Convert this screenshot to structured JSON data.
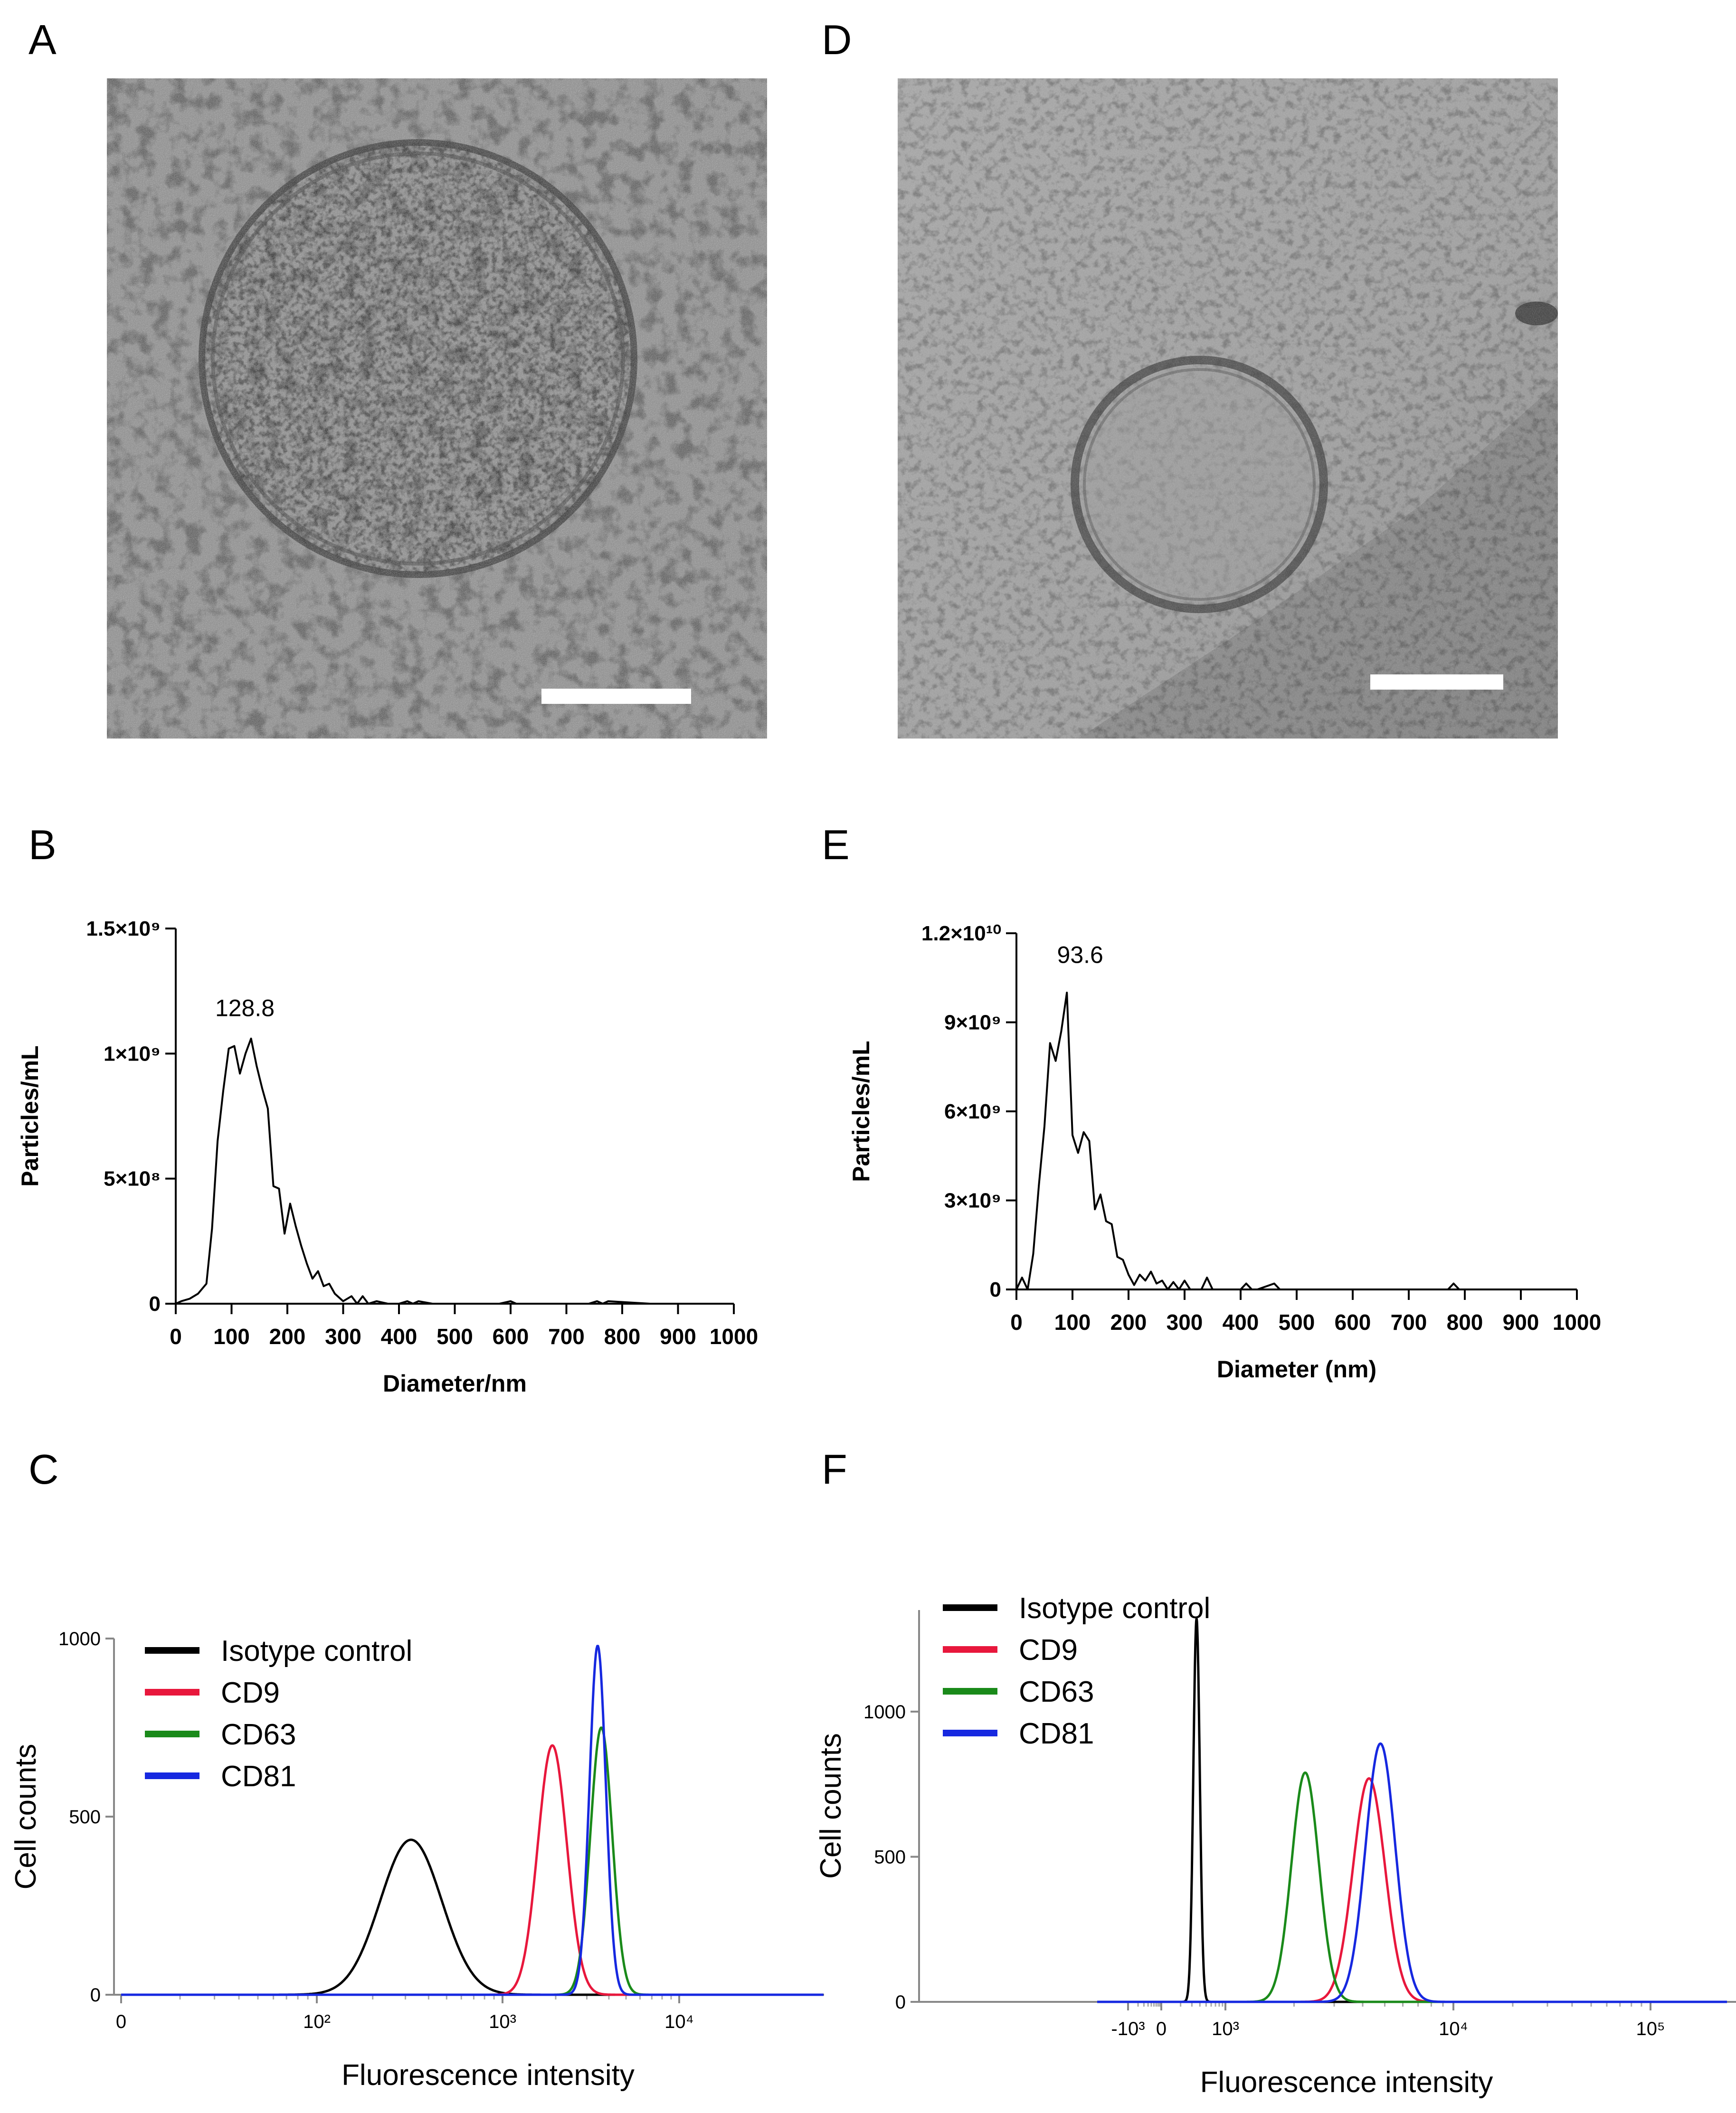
{
  "panels": {
    "A": "A",
    "B": "B",
    "C": "C",
    "D": "D",
    "E": "E",
    "F": "F"
  },
  "colors": {
    "isotype": "#000000",
    "cd9": "#e8173c",
    "cd63": "#1a8a1a",
    "cd81": "#1628e0",
    "em_background": "#8c8c8c"
  },
  "chart_data": [
    {
      "id": "B",
      "type": "line",
      "xlabel": "Diameter/nm",
      "ylabel": "Particles/mL",
      "xlim": [
        0,
        1000
      ],
      "ylim": [
        0,
        1500000000
      ],
      "x_ticks": [
        "0",
        "100",
        "200",
        "300",
        "400",
        "500",
        "600",
        "700",
        "800",
        "900",
        "1000"
      ],
      "y_ticks": [
        "0",
        "5×10⁸",
        "1×10⁹",
        "1.5×10⁹"
      ],
      "y_tick_values": [
        0,
        500000000,
        1000000000,
        1500000000
      ],
      "annotation": {
        "text": "128.8",
        "x": 100,
        "y": 1150000000
      },
      "grid": false,
      "series": [
        {
          "x": [
            0,
            10,
            25,
            40,
            55,
            65,
            75,
            85,
            95,
            105,
            115,
            125,
            135,
            145,
            155,
            165,
            175,
            185,
            195,
            205,
            215,
            225,
            235,
            245,
            255,
            265,
            275,
            285,
            300,
            315,
            325,
            335,
            345,
            360,
            380,
            400,
            415,
            425,
            435,
            460,
            500,
            540,
            580,
            600,
            610,
            620,
            680,
            740,
            755,
            765,
            775,
            850,
            1000
          ],
          "y": [
            0,
            10000000,
            20000000,
            40000000,
            80000000,
            300000000,
            650000000,
            850000000,
            1020000000,
            1030000000,
            920000000,
            1000000000,
            1060000000,
            950000000,
            860000000,
            780000000,
            470000000,
            460000000,
            280000000,
            400000000,
            310000000,
            230000000,
            160000000,
            100000000,
            130000000,
            70000000,
            80000000,
            40000000,
            10000000,
            30000000,
            0,
            30000000,
            0,
            10000000,
            0,
            0,
            10000000,
            0,
            10000000,
            0,
            0,
            0,
            0,
            10000000,
            0,
            0,
            0,
            0,
            10000000,
            0,
            10000000,
            0,
            0
          ]
        }
      ]
    },
    {
      "id": "E",
      "type": "line",
      "xlabel": "Diameter (nm)",
      "ylabel": "Particles/mL",
      "xlim": [
        0,
        1000
      ],
      "ylim": [
        0,
        12000000000
      ],
      "x_ticks": [
        "0",
        "100",
        "200",
        "300",
        "400",
        "500",
        "600",
        "700",
        "800",
        "900",
        "1000"
      ],
      "y_ticks": [
        "0",
        "3×10⁹",
        "6×10⁹",
        "9×10⁹",
        "1.2×10¹⁰"
      ],
      "y_tick_values": [
        0,
        3000000000,
        6000000000,
        9000000000,
        12000000000
      ],
      "annotation": {
        "text": "93.6",
        "x": 90,
        "y": 11000000000
      },
      "grid": false,
      "series": [
        {
          "x": [
            0,
            10,
            20,
            30,
            40,
            50,
            60,
            70,
            80,
            90,
            100,
            110,
            120,
            130,
            140,
            150,
            160,
            170,
            180,
            190,
            200,
            210,
            220,
            230,
            240,
            250,
            260,
            270,
            280,
            290,
            300,
            310,
            320,
            330,
            340,
            350,
            360,
            400,
            410,
            420,
            430,
            460,
            470,
            480,
            500,
            770,
            780,
            790,
            1000
          ],
          "y": [
            0,
            400000000,
            0,
            1200000000,
            3500000000,
            5500000000,
            8300000000,
            7700000000,
            8700000000,
            10000000000,
            5200000000,
            4600000000,
            5300000000,
            5000000000,
            2700000000,
            3200000000,
            2300000000,
            2200000000,
            1100000000,
            1000000000,
            500000000,
            150000000,
            500000000,
            300000000,
            600000000,
            200000000,
            300000000,
            0,
            250000000,
            0,
            300000000,
            0,
            0,
            0,
            400000000,
            0,
            0,
            0,
            200000000,
            0,
            0,
            200000000,
            0,
            0,
            0,
            0,
            200000000,
            0,
            0
          ]
        }
      ]
    },
    {
      "id": "C",
      "type": "line",
      "xlabel": "Fluorescence intensity",
      "ylabel": "Cell counts",
      "scale_x": "biexponential",
      "ylim": [
        0,
        1000
      ],
      "x_ticks": [
        "0",
        "10²",
        "10³",
        "10⁴"
      ],
      "y_ticks": [
        "0",
        "500",
        "1000"
      ],
      "y_tick_values": [
        0,
        500,
        1000
      ],
      "legend": [
        "Isotype control",
        "CD9",
        "CD63",
        "CD81"
      ],
      "legend_position": "top-left",
      "series": [
        {
          "name": "Isotype control",
          "color": "#000000",
          "peak_log": 2.52,
          "peak_count": 435,
          "width": 0.17
        },
        {
          "name": "CD9",
          "color": "#e8173c",
          "peak_log": 3.3,
          "peak_count": 700,
          "width": 0.08
        },
        {
          "name": "CD63",
          "color": "#1a8a1a",
          "peak_log": 3.57,
          "peak_count": 750,
          "width": 0.06
        },
        {
          "name": "CD81",
          "color": "#1628e0",
          "peak_log": 3.55,
          "peak_count": 980,
          "width": 0.045
        }
      ]
    },
    {
      "id": "F",
      "type": "line",
      "xlabel": "Fluorescence intensity",
      "ylabel": "Cell counts",
      "scale_x": "biexponential",
      "ylim": [
        0,
        1350
      ],
      "x_ticks": [
        "-10³",
        "0",
        "10³",
        "10⁴",
        "10⁵"
      ],
      "y_ticks": [
        "0",
        "500",
        "1000"
      ],
      "y_tick_values": [
        0,
        500,
        1000
      ],
      "legend": [
        "Isotype control",
        "CD9",
        "CD63",
        "CD81"
      ],
      "legend_position": "top-left",
      "series": [
        {
          "name": "Isotype control",
          "color": "#000000",
          "peak_log": 2.55,
          "peak_count": 1320,
          "width": 0.05
        },
        {
          "name": "CD9",
          "color": "#e8173c",
          "peak_log": 3.63,
          "peak_count": 770,
          "width": 0.07
        },
        {
          "name": "CD63",
          "color": "#1a8a1a",
          "peak_log": 3.35,
          "peak_count": 790,
          "width": 0.06
        },
        {
          "name": "CD81",
          "color": "#1628e0",
          "peak_log": 3.68,
          "peak_count": 890,
          "width": 0.065
        }
      ]
    }
  ]
}
